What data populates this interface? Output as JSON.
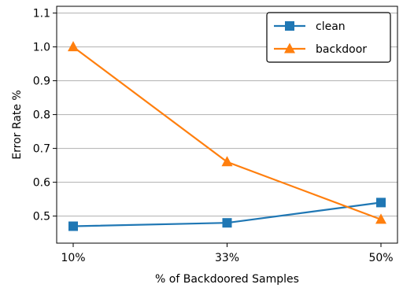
{
  "chart_data": {
    "type": "line",
    "title": "",
    "xlabel": "% of Backdoored Samples",
    "ylabel": "Error Rate %",
    "categories": [
      "10%",
      "33%",
      "50%"
    ],
    "ylim": [
      0.42,
      1.12
    ],
    "yticks": [
      "0.5",
      "0.6",
      "0.7",
      "0.8",
      "0.9",
      "1.0",
      "1.1"
    ],
    "grid": "horizontal",
    "legend": "top-right",
    "series": [
      {
        "name": "clean",
        "values": [
          0.47,
          0.48,
          0.54
        ],
        "color": "#1f77b4",
        "marker": "square"
      },
      {
        "name": "backdoor",
        "values": [
          1.0,
          0.66,
          0.49
        ],
        "color": "#ff7f0e",
        "marker": "triangle"
      }
    ]
  }
}
